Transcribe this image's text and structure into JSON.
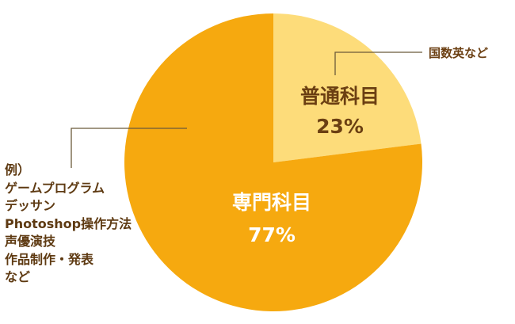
{
  "chart_data": {
    "type": "pie",
    "categories": [
      "普通科目",
      "専門科目"
    ],
    "values": [
      23,
      77
    ],
    "value_labels": [
      "23%",
      "77%"
    ],
    "colors": [
      "#fddc7a",
      "#f6a90f"
    ],
    "start": "12 o'clock, clockwise",
    "annotations": [
      {
        "slice": 0,
        "text": "国数英など"
      },
      {
        "slice": 1,
        "lines": [
          "例）",
          "ゲームプログラム",
          "デッサン",
          "Photoshop操作方法",
          "声優演技",
          "作品制作・発表",
          "など"
        ]
      }
    ]
  }
}
